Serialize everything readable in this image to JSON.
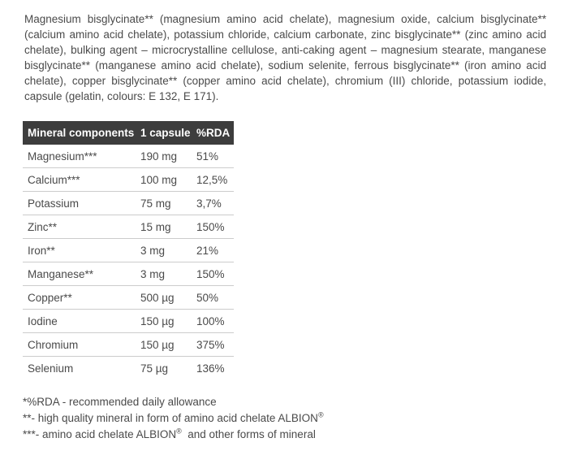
{
  "ingredients": {
    "text": "Magnesium bisglycinate** (magnesium amino acid chelate), magnesium oxide, calcium bisglycinate** (calcium amino acid chelate), potassium chloride, calcium carbonate, zinc bisglycinate** (zinc amino acid chelate), bulking agent – microcrystalline cellulose, anti-caking agent – magnesium stearate, manganese bisglycinate** (manganese amino acid chelate), sodium selenite, ferrous bisglycinate** (iron amino acid chelate), copper bisglycinate** (copper amino acid chelate), chromium (III) chloride, potassium iodide, capsule (gelatin, colours: E 132, E 171)."
  },
  "table": {
    "headers": [
      "Mineral components",
      "1 capsule",
      "%RDA"
    ],
    "rows": [
      [
        "Magnesium***",
        "190 mg",
        "51%"
      ],
      [
        "Calcium***",
        "100 mg",
        "12,5%"
      ],
      [
        "Potassium",
        "75 mg",
        "3,7%"
      ],
      [
        "Zinc**",
        "15 mg",
        "150%"
      ],
      [
        "Iron**",
        "3 mg",
        "21%"
      ],
      [
        "Manganese**",
        "3 mg",
        "150%"
      ],
      [
        "Copper**",
        "500 µg",
        "50%"
      ],
      [
        "Iodine",
        "150 µg",
        "100%"
      ],
      [
        "Chromium",
        "150 µg",
        "375%"
      ],
      [
        "Selenium",
        "75 µg",
        "136%"
      ]
    ]
  },
  "footnotes": {
    "line1": "*%RDA - recommended daily allowance",
    "line2_pre": "**- high quality mineral in form of amino acid chelate ALBION",
    "line2_sup": "®",
    "line3_pre": "***- amino acid chelate ALBION",
    "line3_sup": "®",
    "line3_post": "  and other forms of mineral"
  },
  "colors": {
    "header_bg": "#3d3d3d",
    "header_text": "#ffffff",
    "body_text": "#4a4a4a",
    "row_separator": "#cccccc",
    "page_bg": "#ffffff"
  }
}
